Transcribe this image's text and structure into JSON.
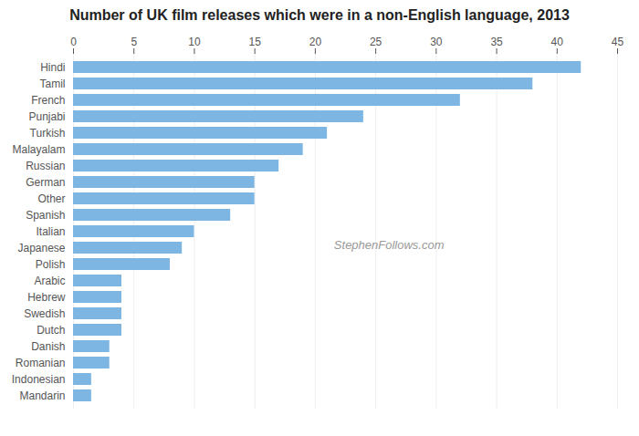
{
  "chart_data": {
    "type": "bar",
    "orientation": "horizontal",
    "title": "Number of UK film releases which were in a non-English language, 2013",
    "categories": [
      "Hindi",
      "Tamil",
      "French",
      "Punjabi",
      "Turkish",
      "Malayalam",
      "Russian",
      "German",
      "Other",
      "Spanish",
      "Italian",
      "Japanese",
      "Polish",
      "Arabic",
      "Hebrew",
      "Swedish",
      "Dutch",
      "Danish",
      "Romanian",
      "Indonesian",
      "Mandarin"
    ],
    "values": [
      42,
      38,
      32,
      24,
      21,
      19,
      17,
      15,
      15,
      13,
      10,
      9,
      8,
      4,
      4,
      4,
      4,
      3,
      3,
      1.5,
      1.5
    ],
    "color": "#7EB6E3",
    "xlim": [
      0,
      45
    ],
    "xticks": [
      0,
      5,
      10,
      15,
      20,
      25,
      30,
      35,
      40,
      45
    ],
    "grid": true,
    "annotations": [
      "StephenFollows.com"
    ]
  }
}
